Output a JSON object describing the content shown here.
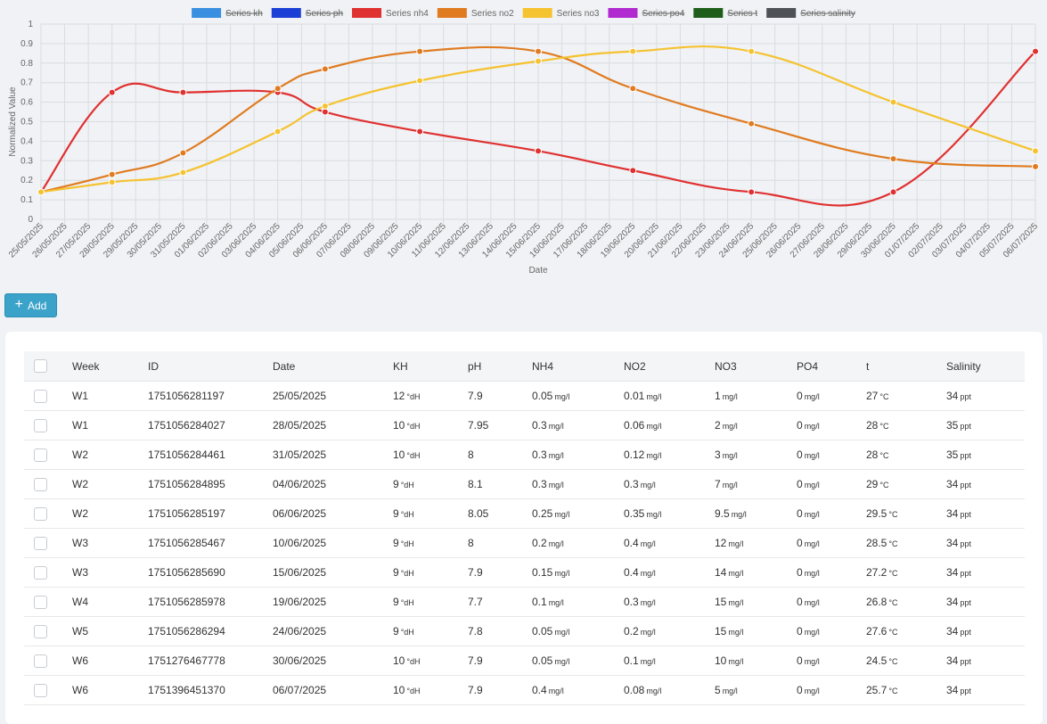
{
  "chart_data": {
    "type": "line",
    "ylabel": "Normalized Value",
    "xlabel": "Date",
    "ylim": [
      0,
      1
    ],
    "yticks": [
      "0",
      "0.1",
      "0.2",
      "0.3",
      "0.4",
      "0.5",
      "0.6",
      "0.7",
      "0.8",
      "0.9",
      "1"
    ],
    "grid": true,
    "legend_position": "top-center",
    "categories": [
      "25/05/2025",
      "26/05/2025",
      "27/05/2025",
      "28/05/2025",
      "29/05/2025",
      "30/05/2025",
      "31/05/2025",
      "01/06/2025",
      "02/06/2025",
      "03/06/2025",
      "04/06/2025",
      "05/06/2025",
      "06/06/2025",
      "07/06/2025",
      "08/06/2025",
      "09/06/2025",
      "10/06/2025",
      "11/06/2025",
      "12/06/2025",
      "13/06/2025",
      "14/06/2025",
      "15/06/2025",
      "16/06/2025",
      "17/06/2025",
      "18/06/2025",
      "19/06/2025",
      "20/06/2025",
      "21/06/2025",
      "22/06/2025",
      "23/06/2025",
      "24/06/2025",
      "25/06/2025",
      "26/06/2025",
      "27/06/2025",
      "28/06/2025",
      "29/06/2025",
      "30/06/2025",
      "01/07/2025",
      "02/07/2025",
      "03/07/2025",
      "04/07/2025",
      "05/07/2025",
      "06/07/2025"
    ],
    "series": [
      {
        "name": "Series kh",
        "color": "#3b8fe0",
        "hidden": true,
        "points": []
      },
      {
        "name": "Series ph",
        "color": "#1c3fd6",
        "hidden": true,
        "points": []
      },
      {
        "name": "Series nh4",
        "color": "#e03131",
        "hidden": false,
        "points": [
          {
            "x": "25/05/2025",
            "y": 0.14
          },
          {
            "x": "28/05/2025",
            "y": 0.65
          },
          {
            "x": "31/05/2025",
            "y": 0.65
          },
          {
            "x": "04/06/2025",
            "y": 0.65
          },
          {
            "x": "06/06/2025",
            "y": 0.55
          },
          {
            "x": "10/06/2025",
            "y": 0.45
          },
          {
            "x": "15/06/2025",
            "y": 0.35
          },
          {
            "x": "19/06/2025",
            "y": 0.25
          },
          {
            "x": "24/06/2025",
            "y": 0.14
          },
          {
            "x": "30/06/2025",
            "y": 0.14
          },
          {
            "x": "06/07/2025",
            "y": 0.86
          }
        ]
      },
      {
        "name": "Series no2",
        "color": "#e07b20",
        "hidden": false,
        "points": [
          {
            "x": "25/05/2025",
            "y": 0.14
          },
          {
            "x": "28/05/2025",
            "y": 0.23
          },
          {
            "x": "31/05/2025",
            "y": 0.34
          },
          {
            "x": "04/06/2025",
            "y": 0.67
          },
          {
            "x": "06/06/2025",
            "y": 0.77
          },
          {
            "x": "10/06/2025",
            "y": 0.86
          },
          {
            "x": "15/06/2025",
            "y": 0.86
          },
          {
            "x": "19/06/2025",
            "y": 0.67
          },
          {
            "x": "24/06/2025",
            "y": 0.49
          },
          {
            "x": "30/06/2025",
            "y": 0.31
          },
          {
            "x": "06/07/2025",
            "y": 0.27
          }
        ]
      },
      {
        "name": "Series no3",
        "color": "#f5c230",
        "hidden": false,
        "points": [
          {
            "x": "25/05/2025",
            "y": 0.14
          },
          {
            "x": "28/05/2025",
            "y": 0.19
          },
          {
            "x": "31/05/2025",
            "y": 0.24
          },
          {
            "x": "04/06/2025",
            "y": 0.45
          },
          {
            "x": "06/06/2025",
            "y": 0.58
          },
          {
            "x": "10/06/2025",
            "y": 0.71
          },
          {
            "x": "15/06/2025",
            "y": 0.81
          },
          {
            "x": "19/06/2025",
            "y": 0.86
          },
          {
            "x": "24/06/2025",
            "y": 0.86
          },
          {
            "x": "30/06/2025",
            "y": 0.6
          },
          {
            "x": "06/07/2025",
            "y": 0.35
          }
        ]
      },
      {
        "name": "Series po4",
        "color": "#b02ad0",
        "hidden": true,
        "points": []
      },
      {
        "name": "Series t",
        "color": "#1f5e1a",
        "hidden": true,
        "points": []
      },
      {
        "name": "Series salinity",
        "color": "#4e5256",
        "hidden": true,
        "points": []
      }
    ]
  },
  "toolbar": {
    "add_label": "Add",
    "add_icon": "plus-icon"
  },
  "table": {
    "columns": [
      "Week",
      "ID",
      "Date",
      "KH",
      "pH",
      "NH4",
      "NO2",
      "NO3",
      "PO4",
      "t",
      "Salinity"
    ],
    "units": {
      "kh": "°dH",
      "nh4": "mg/l",
      "no2": "mg/l",
      "no3": "mg/l",
      "po4": "mg/l",
      "t": "°C",
      "salinity": "ppt"
    },
    "rows": [
      {
        "week": "W1",
        "id": "1751056281197",
        "date": "25/05/2025",
        "kh": "12",
        "ph": "7.9",
        "nh4": "0.05",
        "no2": "0.01",
        "no3": "1",
        "po4": "0",
        "t": "27",
        "salinity": "34"
      },
      {
        "week": "W1",
        "id": "1751056284027",
        "date": "28/05/2025",
        "kh": "10",
        "ph": "7.95",
        "nh4": "0.3",
        "no2": "0.06",
        "no3": "2",
        "po4": "0",
        "t": "28",
        "salinity": "35"
      },
      {
        "week": "W2",
        "id": "1751056284461",
        "date": "31/05/2025",
        "kh": "10",
        "ph": "8",
        "nh4": "0.3",
        "no2": "0.12",
        "no3": "3",
        "po4": "0",
        "t": "28",
        "salinity": "35"
      },
      {
        "week": "W2",
        "id": "1751056284895",
        "date": "04/06/2025",
        "kh": "9",
        "ph": "8.1",
        "nh4": "0.3",
        "no2": "0.3",
        "no3": "7",
        "po4": "0",
        "t": "29",
        "salinity": "34"
      },
      {
        "week": "W2",
        "id": "1751056285197",
        "date": "06/06/2025",
        "kh": "9",
        "ph": "8.05",
        "nh4": "0.25",
        "no2": "0.35",
        "no3": "9.5",
        "po4": "0",
        "t": "29.5",
        "salinity": "34"
      },
      {
        "week": "W3",
        "id": "1751056285467",
        "date": "10/06/2025",
        "kh": "9",
        "ph": "8",
        "nh4": "0.2",
        "no2": "0.4",
        "no3": "12",
        "po4": "0",
        "t": "28.5",
        "salinity": "34"
      },
      {
        "week": "W3",
        "id": "1751056285690",
        "date": "15/06/2025",
        "kh": "9",
        "ph": "7.9",
        "nh4": "0.15",
        "no2": "0.4",
        "no3": "14",
        "po4": "0",
        "t": "27.2",
        "salinity": "34"
      },
      {
        "week": "W4",
        "id": "1751056285978",
        "date": "19/06/2025",
        "kh": "9",
        "ph": "7.7",
        "nh4": "0.1",
        "no2": "0.3",
        "no3": "15",
        "po4": "0",
        "t": "26.8",
        "salinity": "34"
      },
      {
        "week": "W5",
        "id": "1751056286294",
        "date": "24/06/2025",
        "kh": "9",
        "ph": "7.8",
        "nh4": "0.05",
        "no2": "0.2",
        "no3": "15",
        "po4": "0",
        "t": "27.6",
        "salinity": "34"
      },
      {
        "week": "W6",
        "id": "1751276467778",
        "date": "30/06/2025",
        "kh": "10",
        "ph": "7.9",
        "nh4": "0.05",
        "no2": "0.1",
        "no3": "10",
        "po4": "0",
        "t": "24.5",
        "salinity": "34"
      },
      {
        "week": "W6",
        "id": "1751396451370",
        "date": "06/07/2025",
        "kh": "10",
        "ph": "7.9",
        "nh4": "0.4",
        "no2": "0.08",
        "no3": "5",
        "po4": "0",
        "t": "25.7",
        "salinity": "34"
      }
    ]
  }
}
